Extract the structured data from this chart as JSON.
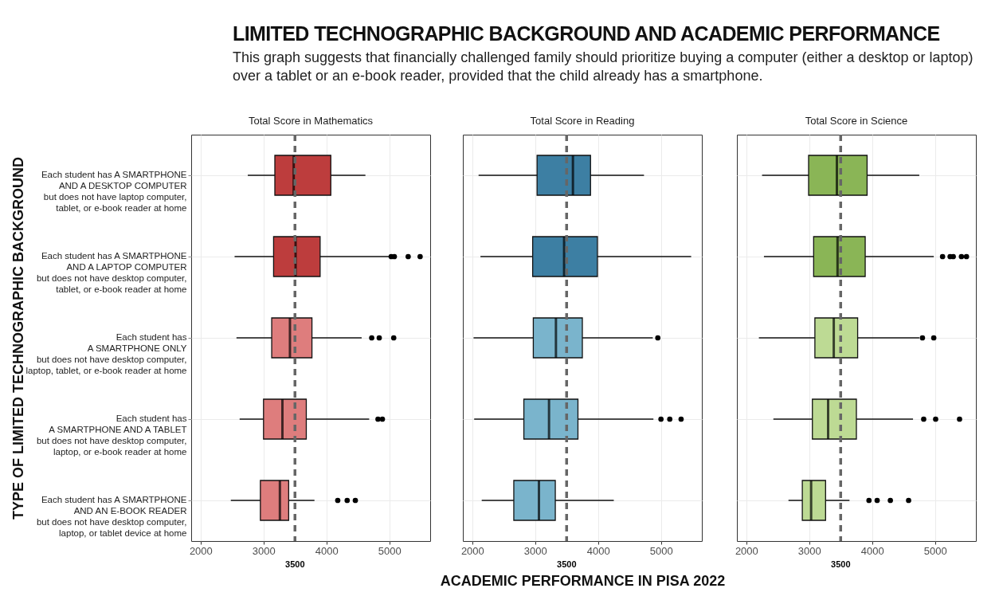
{
  "chart_data": [
    {
      "type": "box",
      "title": "Total Score in Mathematics",
      "annotations": [
        "LIMITED TECHNOGRAPHIC BACKGROUND AND ACADEMIC PERFORMANCE",
        "This graph suggests that financially challenged family should prioritize buying a computer (either a desktop or laptop) over a tablet or an e-book reader, provided that the child already has a smartphone."
      ],
      "ylabel": "TYPE OF LIMITED TECHNOGRAPHIC BACKGROUND",
      "orientation": "horizontal",
      "categories": [
        "Each student has A SMARTPHONE\nAND A DESKTOP COMPUTER\nbut does not have laptop computer,\ntablet, or e-book reader at home",
        "Each student has A SMARTPHONE\nAND A LAPTOP COMPUTER\nbut does not have desktop computer,\ntablet, or e-book reader at home",
        "Each student has\nA SMARTPHONE ONLY\nbut does not have desktop computer,\nlaptop, tablet, or e-book reader at home",
        "Each student has\nA SMARTPHONE AND A TABLET\nbut does not have desktop computer,\nlaptop, or e-book reader at home",
        "Each student has A SMARTPHONE\nAND AN E-BOOK READER\nbut does not have desktop computer,\nlaptop, or tablet device at home"
      ],
      "colors": [
        "#bd3d3d",
        "#bd3d3d",
        "#de7d7d",
        "#de7d7d",
        "#de7d7d"
      ],
      "boxes": [
        {
          "low": 2750,
          "q1": 3180,
          "median": 3480,
          "q3": 4070,
          "high": 4620
        },
        {
          "low": 2540,
          "q1": 3160,
          "median": 3510,
          "q3": 3900,
          "high": 5000,
          "outliers": [
            5030,
            5080,
            5300,
            5490
          ]
        },
        {
          "low": 2570,
          "q1": 3130,
          "median": 3420,
          "q3": 3770,
          "high": 4560,
          "outliers": [
            4720,
            4840,
            5070
          ]
        },
        {
          "low": 2620,
          "q1": 3000,
          "median": 3300,
          "q3": 3680,
          "high": 4680,
          "outliers": [
            4820,
            4890
          ]
        },
        {
          "low": 2480,
          "q1": 2950,
          "median": 3260,
          "q3": 3400,
          "high": 3810,
          "outliers": [
            4180,
            4330,
            4460
          ]
        }
      ],
      "xlim": [
        1850,
        5650
      ],
      "xticks": [
        2000,
        3000,
        4000,
        5000
      ],
      "grid": true,
      "ref_lines": [
        {
          "axis": "x",
          "value": 3500,
          "label": "3500",
          "color": "#666666",
          "line_style": "dashed"
        }
      ]
    },
    {
      "type": "box",
      "title": "Total Score in Reading",
      "xlabel": "ACADEMIC PERFORMANCE IN PISA 2022",
      "orientation": "horizontal",
      "tick_labels": "x",
      "categories": [
        "Each student has A SMARTPHONE\nAND A DESKTOP COMPUTER\nbut does not have laptop computer,\ntablet, or e-book reader at home",
        "Each student has A SMARTPHONE\nAND A LAPTOP COMPUTER\nbut does not have desktop computer,\ntablet, or e-book reader at home",
        "Each student has\nA SMARTPHONE ONLY\nbut does not have desktop computer,\nlaptop, tablet, or e-book reader at home",
        "Each student has\nA SMARTPHONE AND A TABLET\nbut does not have desktop computer,\nlaptop, or e-book reader at home",
        "Each student has A SMARTPHONE\nAND AN E-BOOK READER\nbut does not have desktop computer,\nlaptop, or tablet device at home"
      ],
      "colors": [
        "#3d7fa3",
        "#3d7fa3",
        "#7ab4cc",
        "#7ab4cc",
        "#7ab4cc"
      ],
      "boxes": [
        {
          "low": 2100,
          "q1": 3030,
          "median": 3600,
          "q3": 3880,
          "high": 4730
        },
        {
          "low": 2130,
          "q1": 2960,
          "median": 3460,
          "q3": 3990,
          "high": 5480
        },
        {
          "low": 2020,
          "q1": 2970,
          "median": 3330,
          "q3": 3750,
          "high": 4870,
          "outliers": [
            4950
          ]
        },
        {
          "low": 2030,
          "q1": 2820,
          "median": 3220,
          "q3": 3680,
          "high": 4880,
          "outliers": [
            5000,
            5140,
            5320
          ]
        },
        {
          "low": 2150,
          "q1": 2660,
          "median": 3060,
          "q3": 3320,
          "high": 4250
        }
      ],
      "xlim": [
        1850,
        5650
      ],
      "xticks": [
        2000,
        3000,
        4000,
        5000
      ],
      "grid": true,
      "ref_lines": [
        {
          "axis": "x",
          "value": 3500,
          "label": "3500",
          "color": "#666666",
          "line_style": "dashed"
        }
      ]
    },
    {
      "type": "box",
      "title": "Total Score in Science",
      "orientation": "horizontal",
      "tick_labels": "x",
      "categories": [
        "Each student has A SMARTPHONE\nAND A DESKTOP COMPUTER\nbut does not have laptop computer,\ntablet, or e-book reader at home",
        "Each student has A SMARTPHONE\nAND A LAPTOP COMPUTER\nbut does not have desktop computer,\ntablet, or e-book reader at home",
        "Each student has\nA SMARTPHONE ONLY\nbut does not have desktop computer,\nlaptop, tablet, or e-book reader at home",
        "Each student has\nA SMARTPHONE AND A TABLET\nbut does not have desktop computer,\nlaptop, or e-book reader at home",
        "Each student has A SMARTPHONE\nAND AN E-BOOK READER\nbut does not have desktop computer,\nlaptop, or tablet device at home"
      ],
      "colors": [
        "#8ab556",
        "#8ab556",
        "#bdda94",
        "#bdda94",
        "#bdda94"
      ],
      "boxes": [
        {
          "low": 2250,
          "q1": 2990,
          "median": 3440,
          "q3": 3920,
          "high": 4750
        },
        {
          "low": 2280,
          "q1": 3070,
          "median": 3450,
          "q3": 3890,
          "high": 4980,
          "outliers": [
            5120,
            5240,
            5290,
            5420,
            5500
          ]
        },
        {
          "low": 2200,
          "q1": 3090,
          "median": 3390,
          "q3": 3770,
          "high": 4750,
          "outliers": [
            4800,
            4980
          ]
        },
        {
          "low": 2430,
          "q1": 3050,
          "median": 3300,
          "q3": 3750,
          "high": 4650,
          "outliers": [
            4820,
            5010,
            5390
          ]
        },
        {
          "low": 2670,
          "q1": 2890,
          "median": 3030,
          "q3": 3260,
          "high": 3640,
          "outliers": [
            3950,
            4080,
            4290,
            4580
          ]
        }
      ],
      "xlim": [
        1850,
        5650
      ],
      "xticks": [
        2000,
        3000,
        4000,
        5000
      ],
      "grid": true,
      "ref_lines": [
        {
          "axis": "x",
          "value": 3500,
          "label": "3500",
          "color": "#666666",
          "line_style": "dashed"
        }
      ]
    }
  ]
}
